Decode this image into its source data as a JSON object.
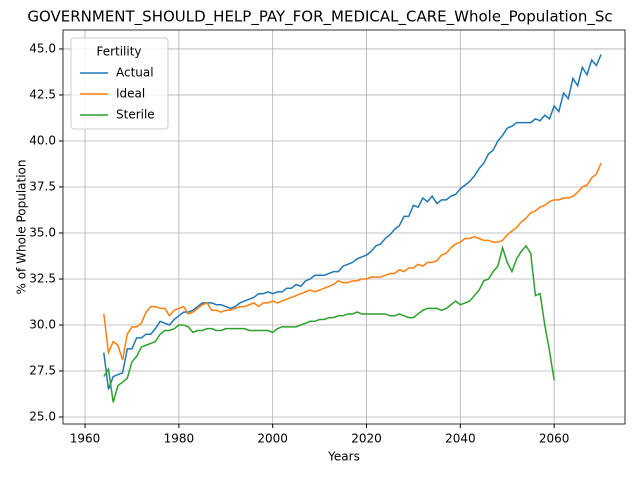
{
  "chart_data": {
    "type": "line",
    "title": "GOVERNMENT_SHOULD_HELP_PAY_FOR_MEDICAL_CARE_Whole_Population_Sc",
    "x_label": "Years",
    "y_label": "% of Whole Population",
    "legend_title": "Fertility",
    "legend_loc": "upper left",
    "grid": true,
    "x": [
      1964,
      1965,
      1966,
      1967,
      1968,
      1969,
      1970,
      1971,
      1972,
      1973,
      1974,
      1975,
      1976,
      1977,
      1978,
      1979,
      1980,
      1981,
      1982,
      1983,
      1984,
      1985,
      1986,
      1987,
      1988,
      1989,
      1990,
      1991,
      1992,
      1993,
      1994,
      1995,
      1996,
      1997,
      1998,
      1999,
      2000,
      2001,
      2002,
      2003,
      2004,
      2005,
      2006,
      2007,
      2008,
      2009,
      2010,
      2011,
      2012,
      2013,
      2014,
      2015,
      2016,
      2017,
      2018,
      2019,
      2020,
      2021,
      2022,
      2023,
      2024,
      2025,
      2026,
      2027,
      2028,
      2029,
      2030,
      2031,
      2032,
      2033,
      2034,
      2035,
      2036,
      2037,
      2038,
      2039,
      2040,
      2041,
      2042,
      2043,
      2044,
      2045,
      2046,
      2047,
      2048,
      2049,
      2050,
      2051,
      2052,
      2053,
      2054,
      2055,
      2056,
      2057,
      2058,
      2059,
      2060,
      2061,
      2062,
      2063,
      2064,
      2065,
      2066,
      2067,
      2068,
      2069,
      2070
    ],
    "series": [
      {
        "name": "Actual",
        "color": "#1f77b4",
        "values": [
          28.5,
          26.5,
          27.2,
          27.3,
          27.4,
          28.7,
          28.7,
          29.3,
          29.3,
          29.5,
          29.5,
          29.8,
          30.2,
          30.1,
          30.0,
          30.3,
          30.5,
          30.7,
          30.7,
          30.8,
          31.0,
          31.2,
          31.2,
          31.2,
          31.1,
          31.1,
          31.0,
          30.9,
          31.0,
          31.2,
          31.3,
          31.4,
          31.5,
          31.7,
          31.7,
          31.8,
          31.7,
          31.8,
          31.8,
          32.0,
          32.0,
          32.2,
          32.1,
          32.4,
          32.5,
          32.7,
          32.7,
          32.7,
          32.8,
          32.9,
          32.9,
          33.2,
          33.3,
          33.4,
          33.6,
          33.7,
          33.8,
          34.0,
          34.3,
          34.4,
          34.7,
          34.9,
          35.2,
          35.4,
          35.9,
          35.9,
          36.5,
          36.4,
          36.9,
          36.7,
          37.0,
          36.6,
          36.8,
          36.8,
          37.0,
          37.1,
          37.4,
          37.6,
          37.8,
          38.1,
          38.5,
          38.8,
          39.3,
          39.5,
          40.0,
          40.3,
          40.7,
          40.8,
          41.0,
          41.0,
          41.0,
          41.0,
          41.2,
          41.1,
          41.4,
          41.2,
          41.9,
          41.6,
          42.6,
          42.3,
          43.4,
          43.0,
          44.0,
          43.6,
          44.4,
          44.1,
          44.7
        ]
      },
      {
        "name": "Ideal",
        "color": "#ff7f0e",
        "values": [
          30.6,
          28.5,
          29.1,
          28.9,
          28.1,
          29.5,
          29.9,
          29.9,
          30.1,
          30.7,
          31.0,
          31.0,
          30.9,
          30.9,
          30.5,
          30.8,
          30.9,
          31.0,
          30.6,
          30.7,
          30.9,
          31.1,
          31.2,
          30.8,
          30.8,
          30.7,
          30.8,
          30.8,
          30.9,
          31.0,
          31.0,
          31.1,
          31.2,
          31.0,
          31.2,
          31.2,
          31.3,
          31.2,
          31.3,
          31.4,
          31.5,
          31.6,
          31.7,
          31.8,
          31.9,
          31.8,
          31.9,
          32.0,
          32.1,
          32.2,
          32.4,
          32.3,
          32.3,
          32.4,
          32.4,
          32.5,
          32.5,
          32.6,
          32.6,
          32.6,
          32.7,
          32.8,
          32.8,
          33.0,
          32.9,
          33.1,
          33.1,
          33.3,
          33.2,
          33.4,
          33.4,
          33.5,
          33.8,
          33.9,
          34.2,
          34.4,
          34.5,
          34.7,
          34.7,
          34.8,
          34.7,
          34.6,
          34.6,
          34.5,
          34.5,
          34.6,
          34.9,
          35.1,
          35.3,
          35.6,
          35.8,
          36.1,
          36.2,
          36.4,
          36.5,
          36.7,
          36.8,
          36.8,
          36.9,
          36.9,
          37.0,
          37.2,
          37.5,
          37.6,
          38.0,
          38.2,
          38.8
        ]
      },
      {
        "name": "Sterile",
        "color": "#2ca02c",
        "values": [
          27.2,
          27.6,
          25.8,
          26.7,
          26.9,
          27.1,
          28.0,
          28.3,
          28.8,
          28.9,
          29.0,
          29.1,
          29.5,
          29.7,
          29.7,
          29.8,
          30.0,
          30.0,
          29.9,
          29.6,
          29.7,
          29.7,
          29.8,
          29.8,
          29.7,
          29.7,
          29.8,
          29.8,
          29.8,
          29.8,
          29.8,
          29.7,
          29.7,
          29.7,
          29.7,
          29.7,
          29.6,
          29.8,
          29.9,
          29.9,
          29.9,
          29.9,
          30.0,
          30.1,
          30.2,
          30.2,
          30.3,
          30.3,
          30.4,
          30.4,
          30.5,
          30.5,
          30.6,
          30.6,
          30.7,
          30.6,
          30.6,
          30.6,
          30.6,
          30.6,
          30.6,
          30.5,
          30.5,
          30.6,
          30.5,
          30.4,
          30.4,
          30.6,
          30.8,
          30.9,
          30.9,
          30.9,
          30.8,
          30.9,
          31.1,
          31.3,
          31.1,
          31.2,
          31.3,
          31.6,
          31.9,
          32.4,
          32.5,
          32.9,
          33.2,
          34.2,
          33.4,
          32.9,
          33.6,
          34.0,
          34.3,
          33.9,
          31.6,
          31.7,
          30.0,
          28.6,
          27.0,
          null,
          null,
          null,
          null,
          null,
          null,
          null,
          null,
          null,
          null
        ]
      }
    ],
    "xlim": [
      1955.3,
      2075.1
    ],
    "xticks": [
      1960,
      1980,
      2000,
      2020,
      2040,
      2060
    ],
    "ylim": [
      24.62,
      46.03
    ],
    "yticks": [
      {
        "value": 25,
        "label": "25.0"
      },
      27.5,
      {
        "value": 30,
        "label": "30.0"
      },
      32.5,
      {
        "value": 35,
        "label": "35.0"
      },
      37.5,
      {
        "value": 40,
        "label": "40.0"
      },
      42.5,
      {
        "value": 45,
        "label": "45.0"
      }
    ]
  }
}
